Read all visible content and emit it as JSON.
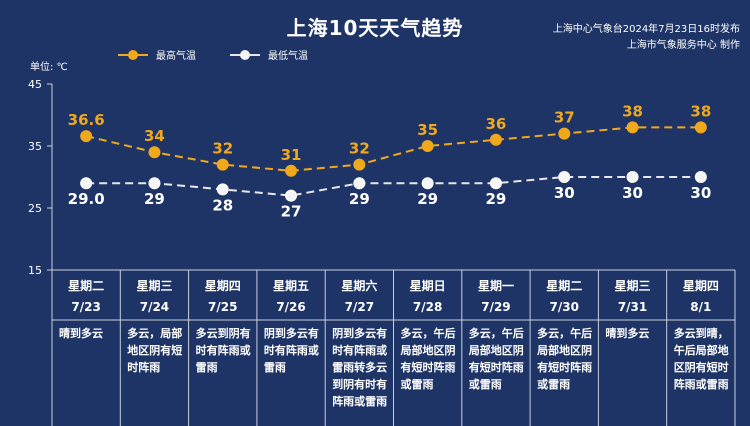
{
  "title": "上海10天天气趋势",
  "source_lines": [
    "上海中心气象台2024年7月23日16时发布",
    "上海市气象服务中心 制作"
  ],
  "unit_label": "单位: ℃",
  "colors": {
    "background": "#1f3466",
    "high": "#f0a81c",
    "low": "#e8e8e8",
    "grid": "#c9cfdb"
  },
  "chart_data": {
    "type": "line",
    "title": "上海10天天气趋势",
    "ylabel": "单位: ℃",
    "ylim": [
      15,
      45
    ],
    "yticks": [
      15,
      25,
      35,
      45
    ],
    "categories": [
      "星期二 7/23",
      "星期三 7/24",
      "星期四 7/25",
      "星期五 7/26",
      "星期六 7/27",
      "星期日 7/28",
      "星期一 7/29",
      "星期二 7/30",
      "星期三 7/31",
      "星期四 8/1"
    ],
    "days": [
      {
        "weekday": "星期二",
        "date": "7/23",
        "weather": "晴到多云"
      },
      {
        "weekday": "星期三",
        "date": "7/24",
        "weather": "多云，局部地区阴有短时阵雨"
      },
      {
        "weekday": "星期四",
        "date": "7/25",
        "weather": "多云到阴有时有阵雨或雷雨"
      },
      {
        "weekday": "星期五",
        "date": "7/26",
        "weather": "阴到多云有时有阵雨或雷雨"
      },
      {
        "weekday": "星期六",
        "date": "7/27",
        "weather": "阴到多云有时有阵雨或雷雨转多云到阴有时有阵雨或雷雨"
      },
      {
        "weekday": "星期日",
        "date": "7/28",
        "weather": "多云，午后局部地区阴有短时阵雨或雷雨"
      },
      {
        "weekday": "星期一",
        "date": "7/29",
        "weather": "多云，午后局部地区阴有短时阵雨或雷雨"
      },
      {
        "weekday": "星期二",
        "date": "7/30",
        "weather": "多云，午后局部地区阴有短时阵雨或雷雨"
      },
      {
        "weekday": "星期三",
        "date": "7/31",
        "weather": "晴到多云"
      },
      {
        "weekday": "星期四",
        "date": "8/1",
        "weather": "多云到晴，午后局部地区阴有短时阵雨或雷雨"
      }
    ],
    "series": [
      {
        "name": "最高气温",
        "values": [
          36.6,
          34,
          32,
          31,
          32,
          35,
          36,
          37,
          38,
          38
        ],
        "labels": [
          "36.6",
          "34",
          "32",
          "31",
          "32",
          "35",
          "36",
          "37",
          "38",
          "38"
        ],
        "color": "#f0a81c"
      },
      {
        "name": "最低气温",
        "values": [
          29.0,
          29,
          28,
          27,
          29,
          29,
          29,
          30,
          30,
          30
        ],
        "labels": [
          "29.0",
          "29",
          "28",
          "27",
          "29",
          "29",
          "29",
          "30",
          "30",
          "30"
        ],
        "color": "#e8e8e8"
      }
    ],
    "legend_position": "top-left",
    "grid": false
  }
}
